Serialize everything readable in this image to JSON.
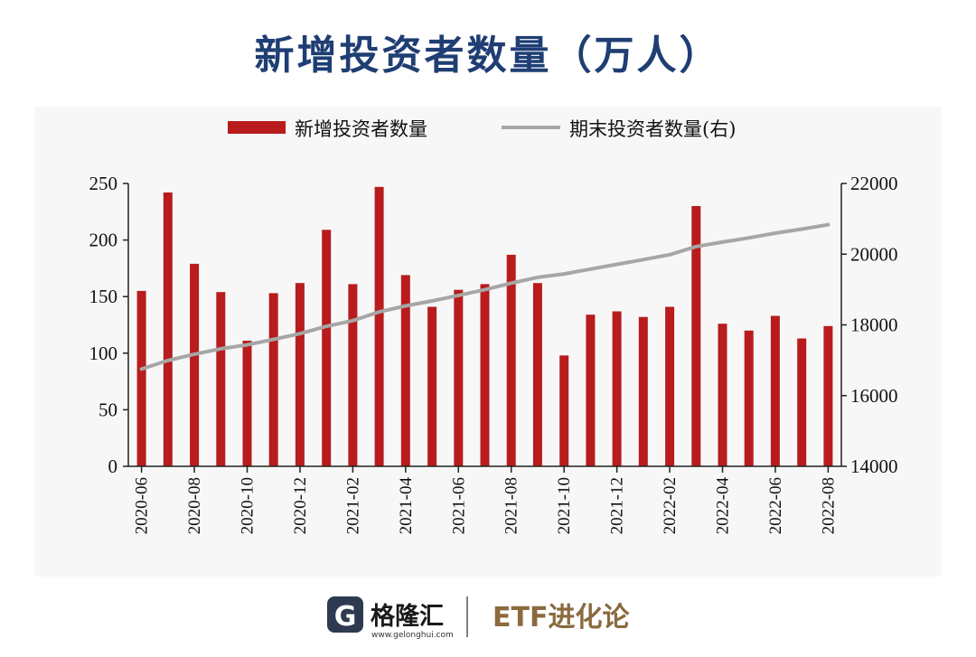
{
  "colors": {
    "title": "#1f3e73",
    "bar": "#b81c1c",
    "line": "#a6a6a6",
    "panel": "#f7f7f7",
    "axis": "#222222",
    "footer_logo": "#2e3a4f",
    "footer_etf": "#8a6a3e"
  },
  "title": "新增投资者数量（万人）",
  "footer": {
    "logo_icon": "G",
    "brand": "格隆汇",
    "url": "www.gelonghui.com",
    "etf_label": "ETF进化论"
  },
  "chart_data": {
    "type": "bar",
    "legend": {
      "bar_label": "新增投资者数量",
      "line_label": "期末投资者数量(右)",
      "placement": "top-center"
    },
    "x_tick_labels": [
      "2020-06",
      "2020-08",
      "2020-10",
      "2020-12",
      "2021-02",
      "2021-04",
      "2021-06",
      "2021-08",
      "2021-10",
      "2021-12",
      "2022-02",
      "2022-04",
      "2022-06",
      "2022-08"
    ],
    "y_left": {
      "min": 0,
      "max": 250,
      "ticks": [
        "0",
        "50",
        "100",
        "150",
        "200",
        "250"
      ]
    },
    "y_right": {
      "min": 14000,
      "max": 22000,
      "ticks": [
        "14000",
        "16000",
        "18000",
        "20000",
        "22000"
      ]
    },
    "series": [
      {
        "name": "新增投资者数量",
        "kind": "bar",
        "axis": "left",
        "values": [
          155,
          242,
          179,
          154,
          111,
          153,
          162,
          209,
          161,
          247,
          169,
          141,
          156,
          161,
          187,
          162,
          98,
          134,
          137,
          132,
          141,
          230,
          126,
          120,
          133,
          113,
          124
        ]
      },
      {
        "name": "期末投资者数量(右)",
        "kind": "line",
        "axis": "right",
        "values": [
          16750,
          16992,
          17171,
          17325,
          17436,
          17589,
          17751,
          17960,
          18121,
          18368,
          18537,
          18678,
          18834,
          18995,
          19182,
          19344,
          19442,
          19576,
          19713,
          19845,
          19986,
          20216,
          20342,
          20462,
          20595,
          20708,
          20832
        ]
      }
    ]
  }
}
